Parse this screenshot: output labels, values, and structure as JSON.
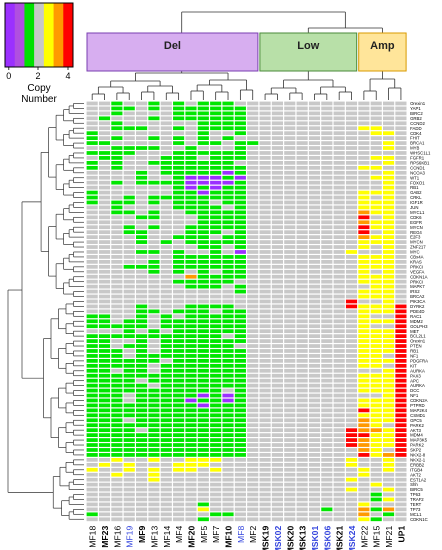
{
  "chart_data": {
    "type": "heatmap",
    "legend": {
      "title_line1": "Copy",
      "title_line2": "Number",
      "ticks": [
        "0",
        "2",
        "4"
      ],
      "colors": [
        "#9b30ff",
        "#b04fe0",
        "#00e000",
        "#c8c8c8",
        "#ffff00",
        "#ff9900",
        "#ff0000"
      ]
    },
    "cluster_groups": [
      {
        "label": "Del",
        "color": "#d7aef0",
        "border": "#7a3fb0",
        "first_col": 0,
        "last_col": 13
      },
      {
        "label": "Low",
        "color": "#b8e0a8",
        "border": "#4a8a3a",
        "first_col": 14,
        "last_col": 21
      },
      {
        "label": "Amp",
        "color": "#ffe59a",
        "border": "#d89a00",
        "first_col": 22,
        "last_col": 25
      }
    ],
    "colors_by_cn": {
      "0": "#9b30ff",
      "1": "#00e600",
      "2": "#c8c8c8",
      "3": "#ffff00",
      "4": "#ff9900",
      "5": "#ff0000"
    },
    "columns": [
      {
        "label": "MF18",
        "bold": false,
        "color": "#000000"
      },
      {
        "label": "MF23",
        "bold": true,
        "color": "#000000"
      },
      {
        "label": "MF16",
        "bold": false,
        "color": "#000000"
      },
      {
        "label": "MF19",
        "bold": false,
        "color": "#3344dd"
      },
      {
        "label": "MF9",
        "bold": true,
        "color": "#000000"
      },
      {
        "label": "MF13",
        "bold": false,
        "color": "#000000"
      },
      {
        "label": "MF14",
        "bold": false,
        "color": "#000000"
      },
      {
        "label": "MF4",
        "bold": false,
        "color": "#000000"
      },
      {
        "label": "MF20",
        "bold": true,
        "color": "#000000"
      },
      {
        "label": "MF5",
        "bold": false,
        "color": "#000000"
      },
      {
        "label": "MF7",
        "bold": false,
        "color": "#000000"
      },
      {
        "label": "MF10",
        "bold": true,
        "color": "#000000"
      },
      {
        "label": "MF8",
        "bold": false,
        "color": "#3344dd"
      },
      {
        "label": "MF2",
        "bold": false,
        "color": "#000000"
      },
      {
        "label": "MSK19",
        "bold": true,
        "color": "#000000"
      },
      {
        "label": "MSK02",
        "bold": true,
        "color": "#3344dd"
      },
      {
        "label": "MSK20",
        "bold": true,
        "color": "#000000"
      },
      {
        "label": "MSK13",
        "bold": true,
        "color": "#000000"
      },
      {
        "label": "MSK01",
        "bold": true,
        "color": "#3344dd"
      },
      {
        "label": "MSK06",
        "bold": true,
        "color": "#3344dd"
      },
      {
        "label": "MSK21",
        "bold": true,
        "color": "#000000"
      },
      {
        "label": "MSK24",
        "bold": true,
        "color": "#3344dd"
      },
      {
        "label": "MF22",
        "bold": false,
        "color": "#000000"
      },
      {
        "label": "MF15",
        "bold": false,
        "color": "#000000"
      },
      {
        "label": "MF21",
        "bold": false,
        "color": "#000000"
      },
      {
        "label": "UP1",
        "bold": true,
        "color": "#000000"
      }
    ],
    "rows": [
      {
        "label": "Orexin1",
        "values": "22122121211122222222222222"
      },
      {
        "label": "YAP1",
        "values": "22112121111112222222222222"
      },
      {
        "label": "BIRC2",
        "values": "22122221111112222222222222"
      },
      {
        "label": "GRB2",
        "values": "21222121111112222222222222"
      },
      {
        "label": "CCND2",
        "values": "22122222211112222222222222"
      },
      {
        "label": "FADD",
        "values": "22111221211112222222223322"
      },
      {
        "label": "CDK4",
        "values": "12222222212212222222222332"
      },
      {
        "label": "FHIT",
        "values": "12122121212122222222222222"
      },
      {
        "label": "BRCA1",
        "values": "11222221211211222222222232"
      },
      {
        "label": "MYB",
        "values": "22111122122212222222222232"
      },
      {
        "label": "WHSC1L1",
        "values": "11112221111112222222222222"
      },
      {
        "label": "FGFR1",
        "values": "21122211121112222222222332"
      },
      {
        "label": "RPS6KB1",
        "values": "12122111111122222222222232"
      },
      {
        "label": "CCND1",
        "values": "12122211111112222222223322"
      },
      {
        "label": "NCOA3",
        "values": "22221211111012222222222232"
      },
      {
        "label": "WT1",
        "values": "22221221000102222222222332"
      },
      {
        "label": "FOXO1",
        "values": "22121111000012222222222232"
      },
      {
        "label": "RB1",
        "values": "22222221010112222222222232"
      },
      {
        "label": "GAB2",
        "values": "12222221101112222222223332"
      },
      {
        "label": "CRKL",
        "values": "12212111111112222222223232"
      },
      {
        "label": "IGF1R",
        "values": "12112121112112222222223332"
      },
      {
        "label": "JUN",
        "values": "22122221111212222222223332"
      },
      {
        "label": "MYCL1",
        "values": "22112122111112222222224332"
      },
      {
        "label": "CDK6",
        "values": "22221122211112222222225232"
      },
      {
        "label": "EGFR",
        "values": "22222222211112222222224332"
      },
      {
        "label": "MYCN",
        "values": "22212122111112222222225332"
      },
      {
        "label": "REG4",
        "values": "22211222111212222222225232"
      },
      {
        "label": "E2F3",
        "values": "22221221112112222222224332"
      },
      {
        "label": "MYCN",
        "values": "22221212111112222222223332"
      },
      {
        "label": "ZNF217",
        "values": "22222222211212222222223232"
      },
      {
        "label": "MYC",
        "values": "22221121221202222222232232"
      },
      {
        "label": "CBx4A",
        "values": "22222221111112222222223332"
      },
      {
        "label": "KRAS",
        "values": "22222121111112222222223332"
      },
      {
        "label": "PRKCI",
        "values": "22211121111112222222223332"
      },
      {
        "label": "VEGFA",
        "values": "22222121212112222222223232"
      },
      {
        "label": "CDKN1A",
        "values": "22222222411112222222223332"
      },
      {
        "label": "PRKCI",
        "values": "22222221111122222222223332"
      },
      {
        "label": "MAPK7",
        "values": "22222222111212222222222332"
      },
      {
        "label": "IRS2",
        "values": "22222222222212222222223332"
      },
      {
        "label": "BRCA2",
        "values": "22222222222222222222223332"
      },
      {
        "label": "PIK3CA",
        "values": "22222222222222222222252232"
      },
      {
        "label": "DYRK2",
        "values": "22221222111122222222253335"
      },
      {
        "label": "PDE4D",
        "values": "22221121112112222222223335"
      },
      {
        "label": "RAC1",
        "values": "11221212111112222222223225"
      },
      {
        "label": "MDM2",
        "values": "11211211111112222222223335"
      },
      {
        "label": "GOLPH3",
        "values": "11111211111112222222223225"
      },
      {
        "label": "MET",
        "values": "22212121111112222222223335"
      },
      {
        "label": "BCL2L1",
        "values": "11111111111212222222223335"
      },
      {
        "label": "Orexin1",
        "values": "11221211111112222222223335"
      },
      {
        "label": "PTEN",
        "values": "11211211111122222222223335"
      },
      {
        "label": "RB1",
        "values": "11121211111112222222223335"
      },
      {
        "label": "NF1",
        "values": "11121111111112222222223325"
      },
      {
        "label": "PDGFRA",
        "values": "11111121111112222222223335"
      },
      {
        "label": "KIT",
        "values": "11111211111112222222223325"
      },
      {
        "label": "AURKA",
        "values": "11211211111112222222222235"
      },
      {
        "label": "PAX3",
        "values": "11111111111112222222223335"
      },
      {
        "label": "APC",
        "values": "11112111111112222222223335"
      },
      {
        "label": "AURKA",
        "values": "11111211111112222222223335"
      },
      {
        "label": "DCC",
        "values": "11111111111212222222223335"
      },
      {
        "label": "NF1",
        "values": "11121111101012222222222235"
      },
      {
        "label": "CDKN2A",
        "values": "11121111011012222222223335"
      },
      {
        "label": "PTPRD",
        "values": "11111111101112222222223335"
      },
      {
        "label": "MAP2K4",
        "values": "11111111111112222222225335"
      },
      {
        "label": "CSMD1",
        "values": "11111111111112222222223335"
      },
      {
        "label": "GPC5",
        "values": "11121111111112222222224335"
      },
      {
        "label": "PARK2",
        "values": "11111111111112222222224325"
      },
      {
        "label": "AKT3",
        "values": "11112111111112222222254435"
      },
      {
        "label": "MDM4",
        "values": "11111111111112222222255335"
      },
      {
        "label": "MAP3K5",
        "values": "11111111111112222222254335"
      },
      {
        "label": "PARK2",
        "values": "11111111111112222222254335"
      },
      {
        "label": "SKP2",
        "values": "11111111111112222222224325"
      },
      {
        "label": "NKX2-8",
        "values": "11111111111112222222225345"
      },
      {
        "label": "NKX2-1",
        "values": "22322322333222222222232232"
      },
      {
        "label": "ERBB2",
        "values": "23232223332222222222232232"
      },
      {
        "label": "ITGB4",
        "values": "32232323323222222222223232"
      },
      {
        "label": "AKT2",
        "values": "22322322222222222222223222"
      },
      {
        "label": "EST1A2",
        "values": "22222322222222222222232222"
      },
      {
        "label": "Shh",
        "values": "22222222222222222222222322"
      },
      {
        "label": "BIRC5",
        "values": "22222222222222222222232232"
      },
      {
        "label": "TP63",
        "values": "22222222222222222222222122"
      },
      {
        "label": "TRAF2",
        "values": "22222222222222222222222132"
      },
      {
        "label": "TERT",
        "values": "22222222212222222222223222"
      },
      {
        "label": "TP73",
        "values": "22222222232222222221224142"
      },
      {
        "label": "MCL1",
        "values": "12222222221122222222224212"
      },
      {
        "label": "CDKN1C",
        "values": "22222222212222222222223122"
      }
    ]
  }
}
